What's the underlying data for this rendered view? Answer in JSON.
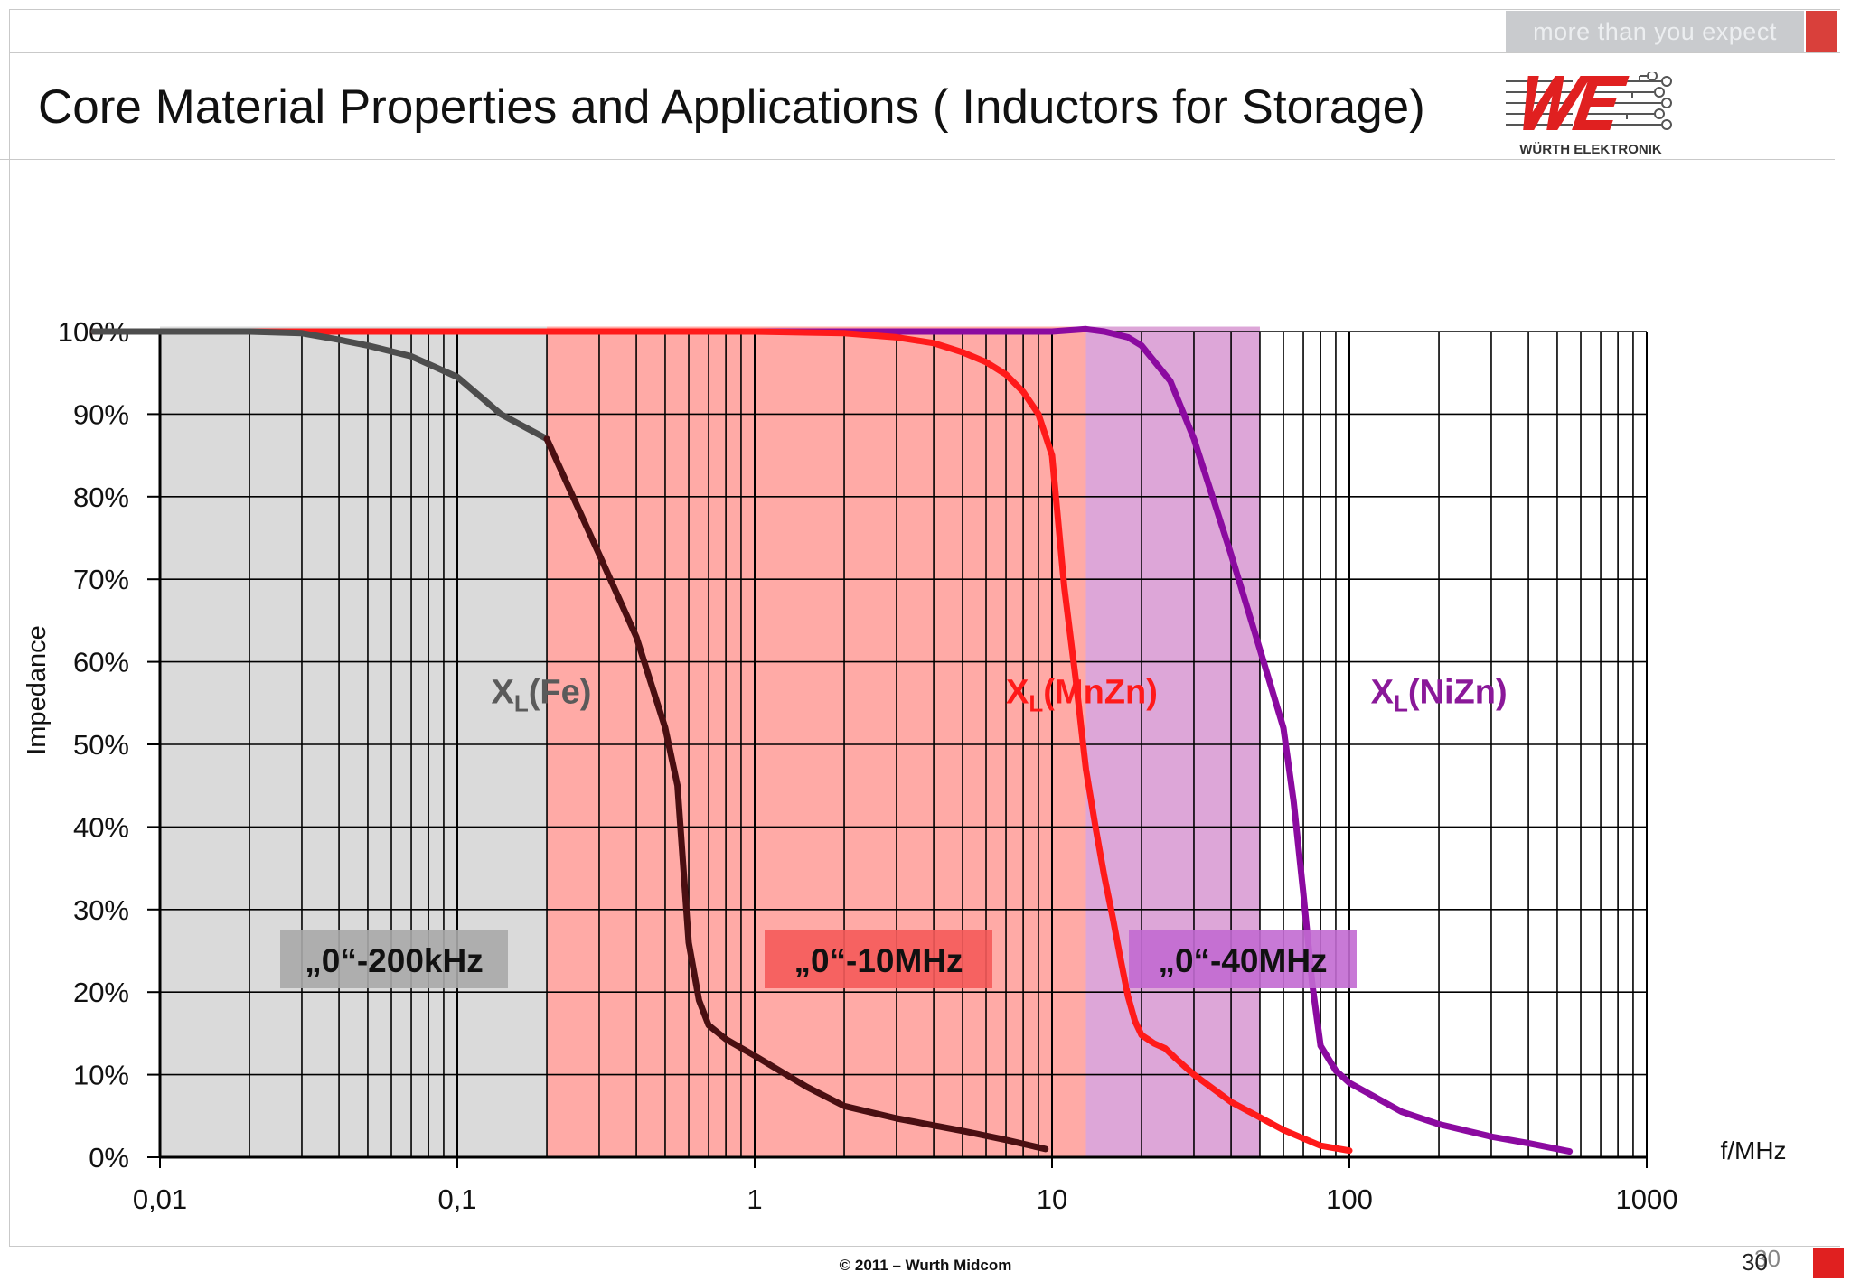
{
  "header": {
    "tagline": "more than you expect",
    "title": "Core Material Properties and Applications ( Inductors for Storage)",
    "logo_text": "WÜRTH ELEKTRONIK"
  },
  "footer": {
    "copyright": "© 2011 – Wurth Midcom",
    "page_number": "30",
    "page_number_ghost": "30"
  },
  "colors": {
    "fe_curve": "#4d4d4d",
    "fe_tail_curve": "#4a0f12",
    "mnzn_curve": "#ff1a1a",
    "nizn_curve": "#8b0aa0",
    "fe_band": "#dadada",
    "mnzn_band": "#ffaaa6",
    "nizn_band": "#dda6d8",
    "fe_box": "#a9a9a9",
    "mnzn_box": "#f55a5a",
    "nizn_box": "#c26ad1",
    "brand_red": "#e02020"
  },
  "chart_data": {
    "type": "line",
    "xscale": "log",
    "xlim": [
      0.01,
      1000
    ],
    "ylim": [
      0,
      100
    ],
    "xlabel": "f/MHz",
    "ylabel": "Impedance",
    "x_ticks": [
      0.01,
      0.1,
      1,
      10,
      100,
      1000
    ],
    "x_tick_labels": [
      "0,01",
      "0,1",
      "1",
      "10",
      "100",
      "1000"
    ],
    "y_ticks": [
      0,
      10,
      20,
      30,
      40,
      50,
      60,
      70,
      80,
      90,
      100
    ],
    "y_tick_labels": [
      "0%",
      "10%",
      "20%",
      "30%",
      "40%",
      "50%",
      "60%",
      "70%",
      "80%",
      "90%",
      "100%"
    ],
    "grid": true,
    "bands": [
      {
        "from": 0.01,
        "to": 0.2,
        "label": "„0“-200kHz"
      },
      {
        "from": 0.2,
        "to": 13,
        "label": "„0“-10MHz"
      },
      {
        "from": 13,
        "to": 50,
        "label": "„0“-40MHz"
      }
    ],
    "series_labels": [
      {
        "main": "X",
        "sub": "L",
        "rest": "(Fe)",
        "x": 0.13,
        "y": 55
      },
      {
        "main": "X",
        "sub": "L",
        "rest": "(MnZn)",
        "x": 7,
        "y": 55
      },
      {
        "main": "X",
        "sub": "L",
        "rest": "(NiZn)",
        "x": 118,
        "y": 55
      }
    ],
    "series": [
      {
        "name": "XL(Fe)",
        "x": [
          0.006,
          0.01,
          0.02,
          0.03,
          0.04,
          0.05,
          0.07,
          0.1,
          0.14,
          0.2,
          0.3,
          0.4,
          0.5,
          0.55,
          0.6,
          0.65,
          0.7,
          0.8,
          1,
          1.5,
          2,
          3,
          5,
          7,
          9.5
        ],
        "y": [
          100,
          100,
          100,
          99.8,
          99,
          98.3,
          97,
          94.5,
          90,
          87,
          73,
          63,
          52,
          45,
          26,
          19,
          16,
          14.3,
          12.3,
          8.5,
          6.2,
          4.7,
          3.2,
          2.1,
          1
        ]
      },
      {
        "name": "XL(MnZn)",
        "x": [
          0.006,
          0.01,
          0.1,
          1,
          2,
          3,
          4,
          5,
          6,
          7,
          8,
          9,
          10,
          11,
          12,
          13,
          14,
          15,
          16,
          17,
          18,
          19,
          20,
          22,
          24,
          26,
          30,
          40,
          60,
          80,
          100
        ],
        "y": [
          100,
          100,
          100,
          100,
          99.8,
          99.3,
          98.6,
          97.5,
          96.3,
          94.8,
          92.7,
          90,
          85,
          69,
          58,
          47,
          40,
          34,
          29,
          24,
          19.5,
          16.5,
          14.8,
          13.8,
          13.2,
          12,
          10,
          6.7,
          3.3,
          1.4,
          0.8
        ]
      },
      {
        "name": "XL(NiZn)",
        "x": [
          0.2,
          1,
          10,
          13,
          15,
          18,
          20,
          25,
          30,
          40,
          50,
          60,
          65,
          70,
          75,
          80,
          90,
          100,
          150,
          200,
          300,
          400,
          550
        ],
        "y": [
          100,
          100,
          100,
          100.3,
          100,
          99.3,
          98.3,
          94,
          87,
          73,
          61.5,
          52,
          43,
          32,
          21,
          13.5,
          10.5,
          9,
          5.5,
          4,
          2.5,
          1.7,
          0.7
        ]
      }
    ]
  }
}
